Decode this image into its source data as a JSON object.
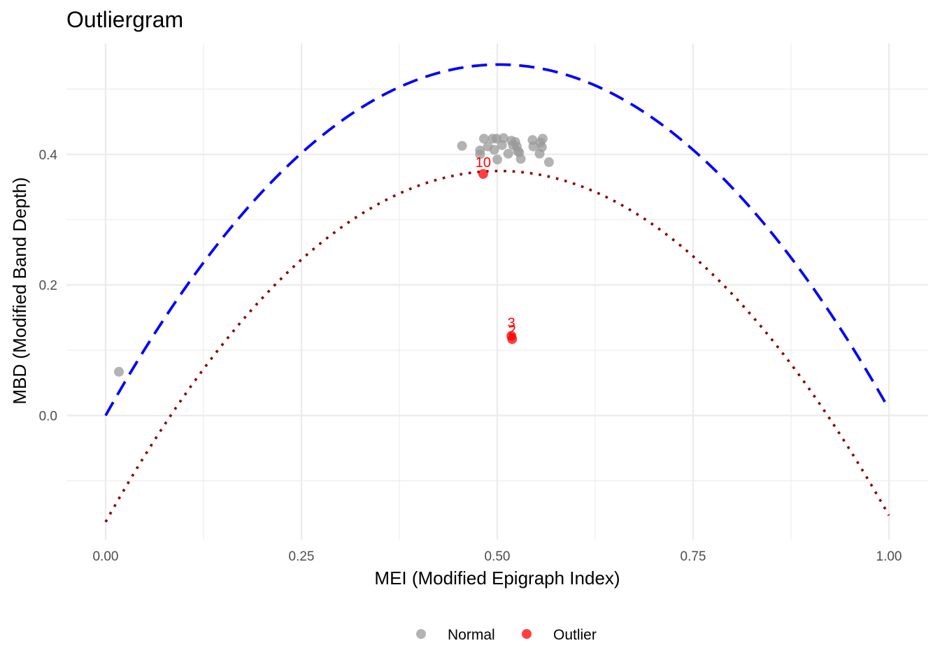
{
  "chart_data": {
    "type": "scatter",
    "title": "Outliergram",
    "xlabel": "MEI (Modified Epigraph Index)",
    "ylabel": "MBD (Modified Band Depth)",
    "xlim": [
      -0.05,
      1.05
    ],
    "ylim": [
      -0.19,
      0.57
    ],
    "x_ticks": [
      0.0,
      0.25,
      0.5,
      0.75,
      1.0
    ],
    "x_tick_labels": [
      "0.00",
      "0.25",
      "0.50",
      "0.75",
      "1.00"
    ],
    "y_ticks": [
      0.0,
      0.2,
      0.4
    ],
    "y_tick_labels": [
      "0.0",
      "0.2",
      "0.4"
    ],
    "grid": true,
    "legend_position": "bottom",
    "colors": {
      "normal": "#999999",
      "outlier": "#ff0000",
      "upper_curve": "#0000ff",
      "lower_curve": "#8b0000"
    },
    "curves": {
      "upper": {
        "name": "",
        "style": "dashed",
        "coef": [
          0.0,
          2.14,
          -2.13
        ]
      },
      "lower": {
        "name": "",
        "style": "dotted",
        "coef": [
          -0.163,
          2.14,
          -2.13
        ]
      }
    },
    "series": [
      {
        "name": "Normal",
        "points": [
          {
            "x": 0.017,
            "y": 0.067
          },
          {
            "x": 0.455,
            "y": 0.413
          },
          {
            "x": 0.478,
            "y": 0.406
          },
          {
            "x": 0.478,
            "y": 0.4
          },
          {
            "x": 0.483,
            "y": 0.424
          },
          {
            "x": 0.488,
            "y": 0.412
          },
          {
            "x": 0.494,
            "y": 0.424
          },
          {
            "x": 0.496,
            "y": 0.407
          },
          {
            "x": 0.499,
            "y": 0.424
          },
          {
            "x": 0.5,
            "y": 0.392
          },
          {
            "x": 0.506,
            "y": 0.414
          },
          {
            "x": 0.508,
            "y": 0.425
          },
          {
            "x": 0.514,
            "y": 0.401
          },
          {
            "x": 0.518,
            "y": 0.421
          },
          {
            "x": 0.52,
            "y": 0.414
          },
          {
            "x": 0.523,
            "y": 0.419
          },
          {
            "x": 0.525,
            "y": 0.412
          },
          {
            "x": 0.526,
            "y": 0.405
          },
          {
            "x": 0.528,
            "y": 0.403
          },
          {
            "x": 0.53,
            "y": 0.393
          },
          {
            "x": 0.545,
            "y": 0.422
          },
          {
            "x": 0.546,
            "y": 0.412
          },
          {
            "x": 0.554,
            "y": 0.401
          },
          {
            "x": 0.555,
            "y": 0.418
          },
          {
            "x": 0.557,
            "y": 0.411
          },
          {
            "x": 0.558,
            "y": 0.424
          },
          {
            "x": 0.566,
            "y": 0.388
          }
        ]
      },
      {
        "name": "Outlier",
        "points": [
          {
            "x": 0.482,
            "y": 0.37,
            "label": "10"
          },
          {
            "x": 0.518,
            "y": 0.122,
            "label": "3"
          },
          {
            "x": 0.519,
            "y": 0.117,
            "label": "2"
          }
        ]
      }
    ]
  }
}
